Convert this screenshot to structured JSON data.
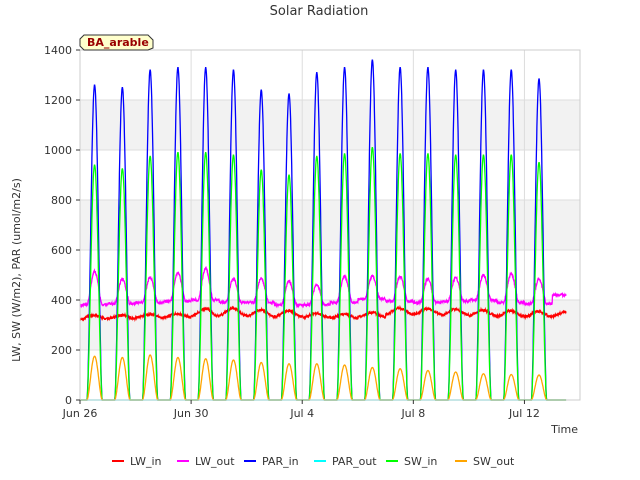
{
  "chart_data": {
    "type": "line",
    "title": "Solar Radiation",
    "xlabel": "Time",
    "ylabel": "LW, SW (W/m2), PAR (umol/m2/s)",
    "badge": "BA_arable",
    "xlim": [
      0,
      18
    ],
    "ylim": [
      0,
      1400
    ],
    "yticks": [
      0,
      200,
      400,
      600,
      800,
      1000,
      1200,
      1400
    ],
    "xticks": [
      {
        "day": 0,
        "label": "Jun 26"
      },
      {
        "day": 4,
        "label": "Jun 30"
      },
      {
        "day": 8,
        "label": "Jul 4"
      },
      {
        "day": 12,
        "label": "Jul 8"
      },
      {
        "day": 16,
        "label": "Jul 12"
      }
    ],
    "grid": true,
    "legend_placement": "bottom",
    "days": [
      0,
      1,
      2,
      3,
      4,
      5,
      6,
      7,
      8,
      9,
      10,
      11,
      12,
      13,
      14,
      15,
      16,
      17
    ],
    "daytime_window": {
      "sunrise_frac": 0.25,
      "sunset_frac": 0.8
    },
    "series": [
      {
        "name": "LW_in",
        "color": "#ff0000",
        "kind": "lw_in",
        "base": [
          335,
          335,
          338,
          340,
          360,
          362,
          355,
          352,
          340,
          338,
          345,
          362,
          360,
          358,
          355,
          352,
          350,
          348
        ],
        "night": [
          318,
          320,
          325,
          326,
          330,
          332,
          330,
          328,
          325,
          322,
          328,
          338,
          338,
          335,
          332,
          330,
          328,
          330
        ]
      },
      {
        "name": "LW_out",
        "color": "#ff00ff",
        "kind": "lw_out",
        "peaks": [
          510,
          480,
          485,
          505,
          520,
          480,
          480,
          470,
          455,
          490,
          490,
          490,
          480,
          485,
          495,
          500,
          480,
          0
        ],
        "night": [
          375,
          380,
          385,
          390,
          395,
          385,
          385,
          375,
          375,
          385,
          400,
          390,
          385,
          390,
          395,
          385,
          380,
          415
        ]
      },
      {
        "name": "PAR_in",
        "color": "#0000ff",
        "kind": "peak",
        "peaks": [
          1260,
          1250,
          1320,
          1330,
          1330,
          1320,
          1240,
          1225,
          1310,
          1330,
          1360,
          1330,
          1330,
          1320,
          1320,
          1320,
          1285,
          0
        ]
      },
      {
        "name": "PAR_out",
        "color": "#00ffff",
        "kind": "peak",
        "peaks": [
          0,
          0,
          0,
          0,
          0,
          0,
          0,
          0,
          0,
          0,
          0,
          0,
          0,
          0,
          0,
          0,
          0,
          0
        ]
      },
      {
        "name": "SW_in",
        "color": "#00ff00",
        "kind": "peak",
        "peaks": [
          940,
          925,
          975,
          990,
          990,
          980,
          920,
          900,
          975,
          985,
          1010,
          985,
          985,
          980,
          980,
          980,
          950,
          0
        ]
      },
      {
        "name": "SW_out",
        "color": "#ffa500",
        "kind": "peak",
        "peaks": [
          175,
          170,
          180,
          170,
          165,
          160,
          150,
          145,
          145,
          140,
          130,
          125,
          118,
          112,
          105,
          102,
          100,
          0
        ]
      }
    ]
  }
}
